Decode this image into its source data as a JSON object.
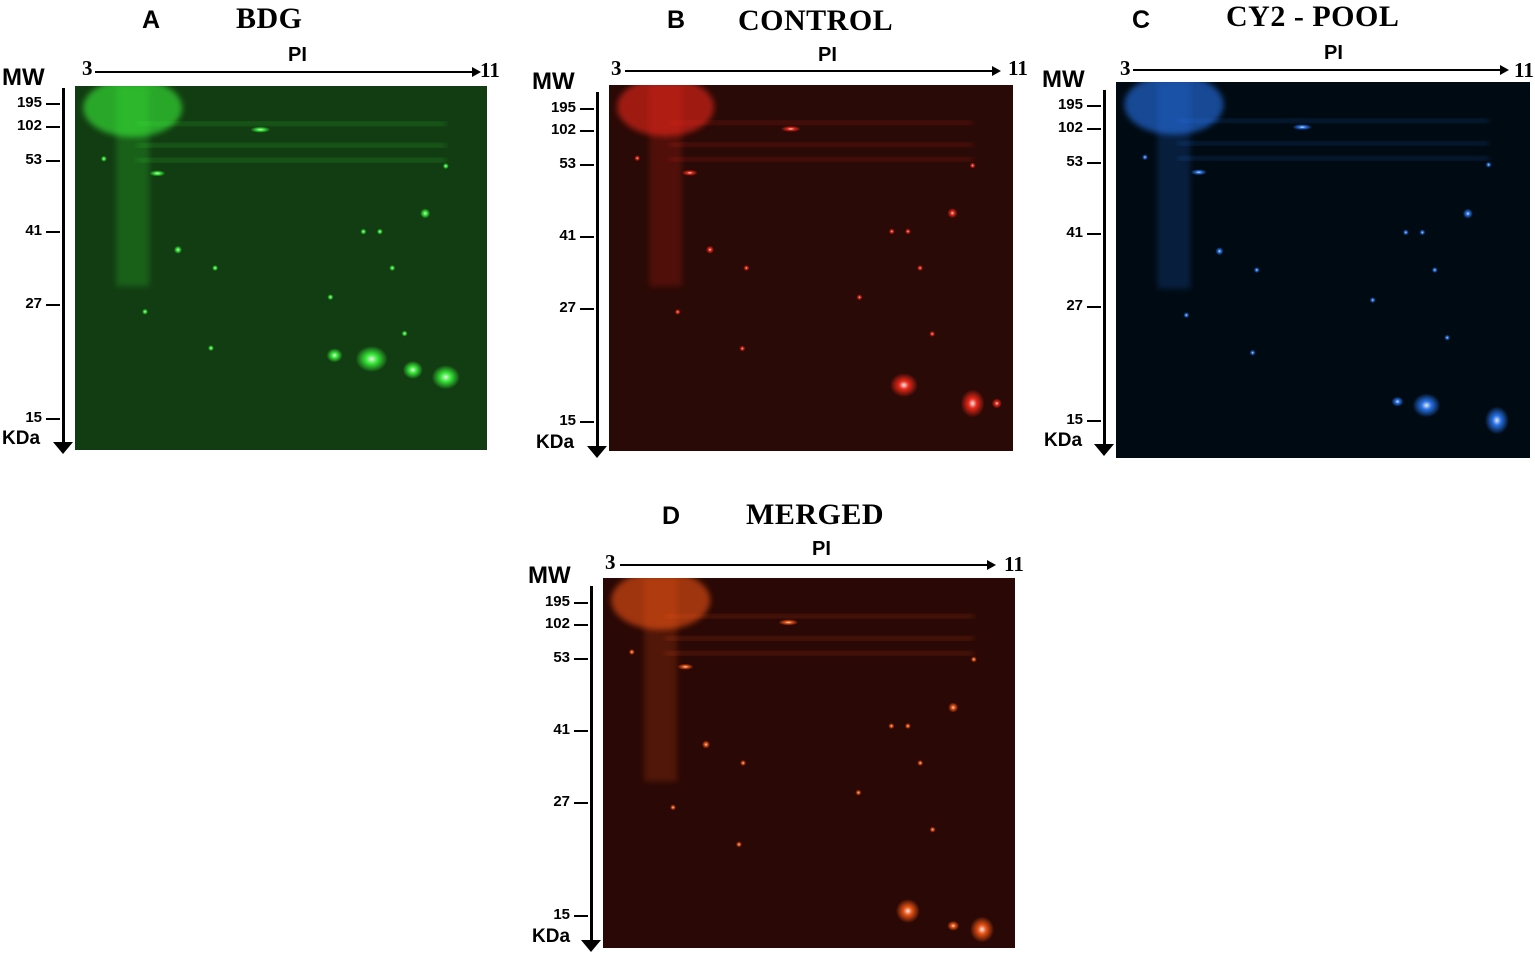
{
  "panels": [
    {
      "letter": "A",
      "title": "BDG",
      "pi_label": "PI",
      "pi_min": "3",
      "pi_max": "11",
      "mw_label": "MW",
      "unit_label": "KDa",
      "ticks": [
        "195",
        "102",
        "53",
        "41",
        "27",
        "15"
      ],
      "channel_color": "#3cff3c",
      "background_color": "#123d12"
    },
    {
      "letter": "B",
      "title": "CONTROL",
      "pi_label": "PI",
      "pi_min": "3",
      "pi_max": "11",
      "mw_label": "MW",
      "unit_label": "KDa",
      "ticks": [
        "195",
        "102",
        "53",
        "41",
        "27",
        "15"
      ],
      "channel_color": "#ff2a1a",
      "background_color": "#2a0a06"
    },
    {
      "letter": "C",
      "title": "CY2 - POOL",
      "pi_label": "PI",
      "pi_min": "3",
      "pi_max": "11",
      "mw_label": "MW",
      "unit_label": "KDa",
      "ticks": [
        "195",
        "102",
        "53",
        "41",
        "27",
        "15"
      ],
      "channel_color": "#2a7dff",
      "background_color": "#000a12"
    },
    {
      "letter": "D",
      "title": "MERGED",
      "pi_label": "PI",
      "pi_min": "3",
      "pi_max": "11",
      "mw_label": "MW",
      "unit_label": "KDa",
      "ticks": [
        "195",
        "102",
        "53",
        "41",
        "27",
        "15"
      ],
      "channel_color": "#ff5a14",
      "background_color": "#2a0805"
    }
  ]
}
